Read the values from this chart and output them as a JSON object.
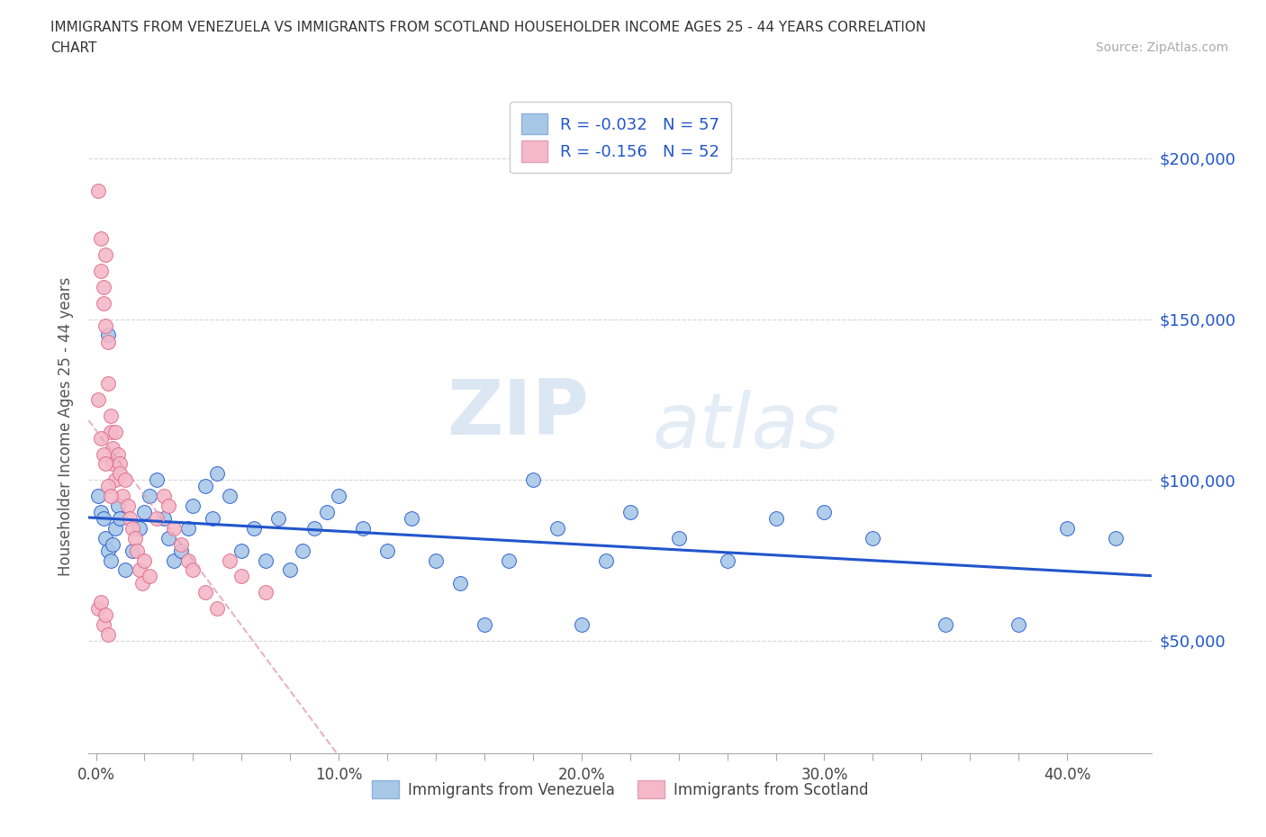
{
  "title_line1": "IMMIGRANTS FROM VENEZUELA VS IMMIGRANTS FROM SCOTLAND HOUSEHOLDER INCOME AGES 25 - 44 YEARS CORRELATION",
  "title_line2": "CHART",
  "source": "Source: ZipAtlas.com",
  "ylabel": "Householder Income Ages 25 - 44 years",
  "legend_label1": "R = -0.032   N = 57",
  "legend_label2": "R = -0.156   N = 52",
  "color_venezuela": "#a8c8e8",
  "color_scotland": "#f4b8c8",
  "line_color_venezuela": "#2255cc",
  "line_color_scotland": "#dd6688",
  "watermark_zip": "ZIP",
  "watermark_atlas": "atlas",
  "ytick_labels": [
    "$50,000",
    "$100,000",
    "$150,000",
    "$200,000"
  ],
  "ytick_values": [
    50000,
    100000,
    150000,
    200000
  ],
  "xtick_labels": [
    "0.0%",
    "",
    "",
    "",
    "",
    "10.0%",
    "",
    "",
    "",
    "",
    "20.0%",
    "",
    "",
    "",
    "",
    "30.0%",
    "",
    "",
    "",
    "",
    "40.0%"
  ],
  "xtick_values": [
    0.0,
    0.02,
    0.04,
    0.06,
    0.08,
    0.1,
    0.12,
    0.14,
    0.16,
    0.18,
    0.2,
    0.22,
    0.24,
    0.26,
    0.28,
    0.3,
    0.32,
    0.34,
    0.36,
    0.38,
    0.4
  ],
  "xmin": -0.003,
  "xmax": 0.435,
  "ymin": 15000,
  "ymax": 218000,
  "venezuela_x": [
    0.001,
    0.002,
    0.003,
    0.004,
    0.005,
    0.006,
    0.007,
    0.008,
    0.009,
    0.01,
    0.012,
    0.015,
    0.018,
    0.02,
    0.022,
    0.025,
    0.028,
    0.03,
    0.032,
    0.035,
    0.038,
    0.04,
    0.045,
    0.048,
    0.05,
    0.055,
    0.06,
    0.065,
    0.07,
    0.075,
    0.08,
    0.085,
    0.09,
    0.095,
    0.1,
    0.11,
    0.12,
    0.13,
    0.14,
    0.15,
    0.16,
    0.17,
    0.18,
    0.19,
    0.2,
    0.21,
    0.22,
    0.24,
    0.26,
    0.28,
    0.3,
    0.32,
    0.35,
    0.38,
    0.4,
    0.42,
    0.005
  ],
  "venezuela_y": [
    95000,
    90000,
    88000,
    82000,
    78000,
    75000,
    80000,
    85000,
    92000,
    88000,
    72000,
    78000,
    85000,
    90000,
    95000,
    100000,
    88000,
    82000,
    75000,
    78000,
    85000,
    92000,
    98000,
    88000,
    102000,
    95000,
    78000,
    85000,
    75000,
    88000,
    72000,
    78000,
    85000,
    90000,
    95000,
    85000,
    78000,
    88000,
    75000,
    68000,
    55000,
    75000,
    100000,
    85000,
    55000,
    75000,
    90000,
    82000,
    75000,
    88000,
    90000,
    82000,
    55000,
    55000,
    85000,
    82000,
    145000
  ],
  "scotland_x": [
    0.001,
    0.001,
    0.002,
    0.002,
    0.003,
    0.003,
    0.004,
    0.004,
    0.005,
    0.005,
    0.006,
    0.006,
    0.007,
    0.007,
    0.008,
    0.008,
    0.009,
    0.01,
    0.01,
    0.011,
    0.012,
    0.013,
    0.014,
    0.015,
    0.016,
    0.017,
    0.018,
    0.019,
    0.02,
    0.022,
    0.025,
    0.028,
    0.03,
    0.032,
    0.035,
    0.038,
    0.04,
    0.045,
    0.05,
    0.055,
    0.06,
    0.07,
    0.002,
    0.003,
    0.004,
    0.005,
    0.006,
    0.001,
    0.002,
    0.003,
    0.004,
    0.005
  ],
  "scotland_y": [
    125000,
    190000,
    165000,
    175000,
    160000,
    155000,
    170000,
    148000,
    143000,
    130000,
    120000,
    115000,
    110000,
    105000,
    100000,
    115000,
    108000,
    105000,
    102000,
    95000,
    100000,
    92000,
    88000,
    85000,
    82000,
    78000,
    72000,
    68000,
    75000,
    70000,
    88000,
    95000,
    92000,
    85000,
    80000,
    75000,
    72000,
    65000,
    60000,
    75000,
    70000,
    65000,
    113000,
    108000,
    105000,
    98000,
    95000,
    60000,
    62000,
    55000,
    58000,
    52000
  ]
}
